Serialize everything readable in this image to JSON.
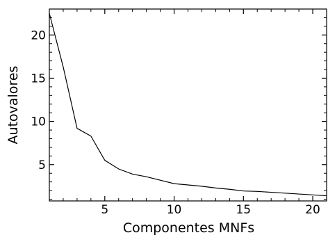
{
  "chart_data": {
    "type": "line",
    "title": "",
    "xlabel": "Componentes MNFs",
    "ylabel": "Autovalores",
    "xlim": [
      1,
      21
    ],
    "ylim": [
      0.8,
      23
    ],
    "xticks": [
      5,
      10,
      15,
      20
    ],
    "yticks": [
      5,
      10,
      15,
      20
    ],
    "grid": false,
    "series": [
      {
        "x": [
          1,
          2,
          3,
          4,
          5,
          6,
          7,
          8,
          9,
          10,
          11,
          12,
          13,
          14,
          15,
          16,
          17,
          18,
          19,
          20,
          21
        ],
        "y": [
          22.5,
          16.3,
          9.2,
          8.3,
          5.5,
          4.5,
          3.9,
          3.6,
          3.2,
          2.8,
          2.65,
          2.5,
          2.3,
          2.15,
          1.95,
          1.9,
          1.8,
          1.7,
          1.6,
          1.5,
          1.4
        ]
      }
    ]
  }
}
